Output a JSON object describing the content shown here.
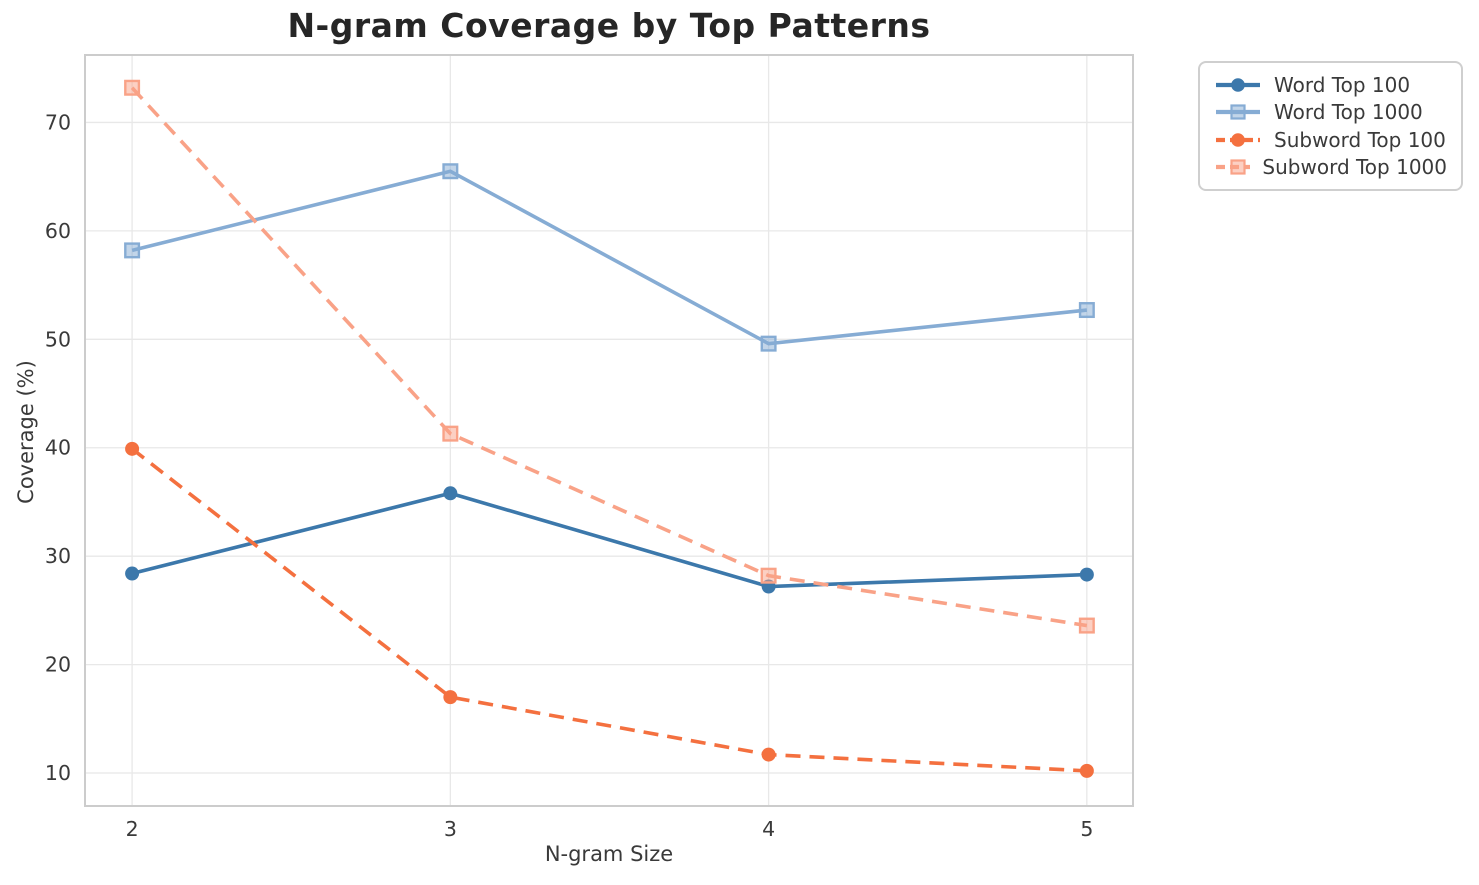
{
  "title": "N-gram Coverage by Top Patterns",
  "colors": {
    "grid": "#e8e8e8",
    "spine": "#cccccc",
    "text": "#3a3a3a",
    "title_text": "#262626",
    "background": "#ffffff",
    "word_top_100": "#3c78ab",
    "word_top_1000": "#86acd4",
    "subword_top_100": "#f4703f",
    "subword_top_1000": "#f9a287"
  },
  "chart_data": {
    "type": "line",
    "title": "N-gram Coverage by Top Patterns",
    "xlabel": "N-gram Size",
    "ylabel": "Coverage (%)",
    "x": [
      2,
      3,
      4,
      5
    ],
    "xticks": [
      2,
      3,
      4,
      5
    ],
    "yticks": [
      10,
      20,
      30,
      40,
      50,
      60,
      70
    ],
    "xlim": [
      1.852,
      5.145
    ],
    "ylim": [
      6.96,
      76.22
    ],
    "grid": true,
    "legend_position": "outside-top-right",
    "series": [
      {
        "name": "Word Top 100",
        "values": [
          28.4,
          35.8,
          27.2,
          28.3
        ],
        "color": "#3c78ab",
        "line": "solid",
        "marker": "circle"
      },
      {
        "name": "Word Top 1000",
        "values": [
          58.2,
          65.5,
          49.6,
          52.7
        ],
        "color": "#86acd4",
        "line": "solid",
        "marker": "square"
      },
      {
        "name": "Subword Top 100",
        "values": [
          39.9,
          17.0,
          11.7,
          10.2
        ],
        "color": "#f4703f",
        "line": "dashed",
        "marker": "circle"
      },
      {
        "name": "Subword Top 1000",
        "values": [
          73.2,
          41.3,
          28.2,
          23.6
        ],
        "color": "#f9a287",
        "line": "dashed",
        "marker": "square"
      }
    ]
  }
}
